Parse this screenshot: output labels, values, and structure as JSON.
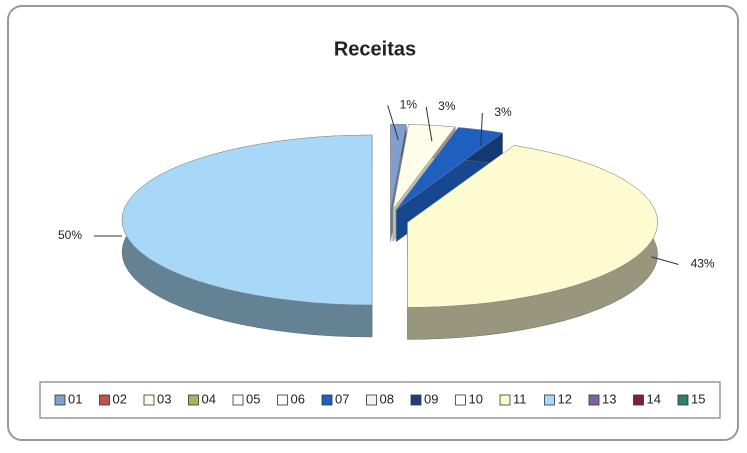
{
  "chart_data": {
    "type": "pie",
    "title": "Receitas",
    "categories": [
      "01",
      "02",
      "03",
      "04",
      "05",
      "06",
      "07",
      "08",
      "09",
      "10",
      "11",
      "12",
      "13",
      "14",
      "15"
    ],
    "values": [
      1,
      0,
      3,
      0,
      0,
      0,
      3,
      0,
      0,
      0,
      43,
      50,
      0,
      0,
      0
    ],
    "value_labels": [
      "1%",
      null,
      "3%",
      null,
      null,
      null,
      "3%",
      null,
      null,
      null,
      "43%",
      "50%",
      null,
      null,
      null
    ],
    "colors": [
      "#7f9fd0",
      "#c0504d",
      "#fdfde9",
      "#9bbb59",
      "#ffffff",
      "#ffffff",
      "#1f5fbf",
      "#f2f2f2",
      "#1f3f7f",
      "#ffffff",
      "#fdfbd0",
      "#a8d8f8",
      "#8064a2",
      "#7f1f3f",
      "#2f7f6f"
    ],
    "legend": "bottom"
  }
}
